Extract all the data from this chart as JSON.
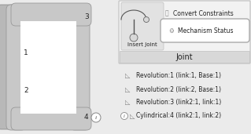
{
  "bg_color": "#ebebeb",
  "wall_color": "#b8b8b8",
  "bar_color": "#c8c8c8",
  "bar_edge": "#999999",
  "white": "#ffffff",
  "toolbar_bg": "#f2f2f2",
  "toolbar_border": "#c0c0c0",
  "joint_bar_bg": "#d8d8d8",
  "mech_btn_bg": "#ffffff",
  "mech_btn_border": "#aaaaaa",
  "text_color": "#222222",
  "icon_color": "#888888",
  "numbers": [
    "1",
    "2",
    "3",
    "4"
  ],
  "toolbar_title": "Joint",
  "btn1_text": "Insert Joint",
  "btn2_text": "Convert Constraints",
  "btn3_text": "Mechanism Status",
  "list_items": [
    "Revolution:1 (link:1, Base:1)",
    "Revolution:2 (link:2, Base:1)",
    "Revolution:3 (link2:1, link:1)",
    "Cylindrical:4 (link2:1, link:2)"
  ]
}
